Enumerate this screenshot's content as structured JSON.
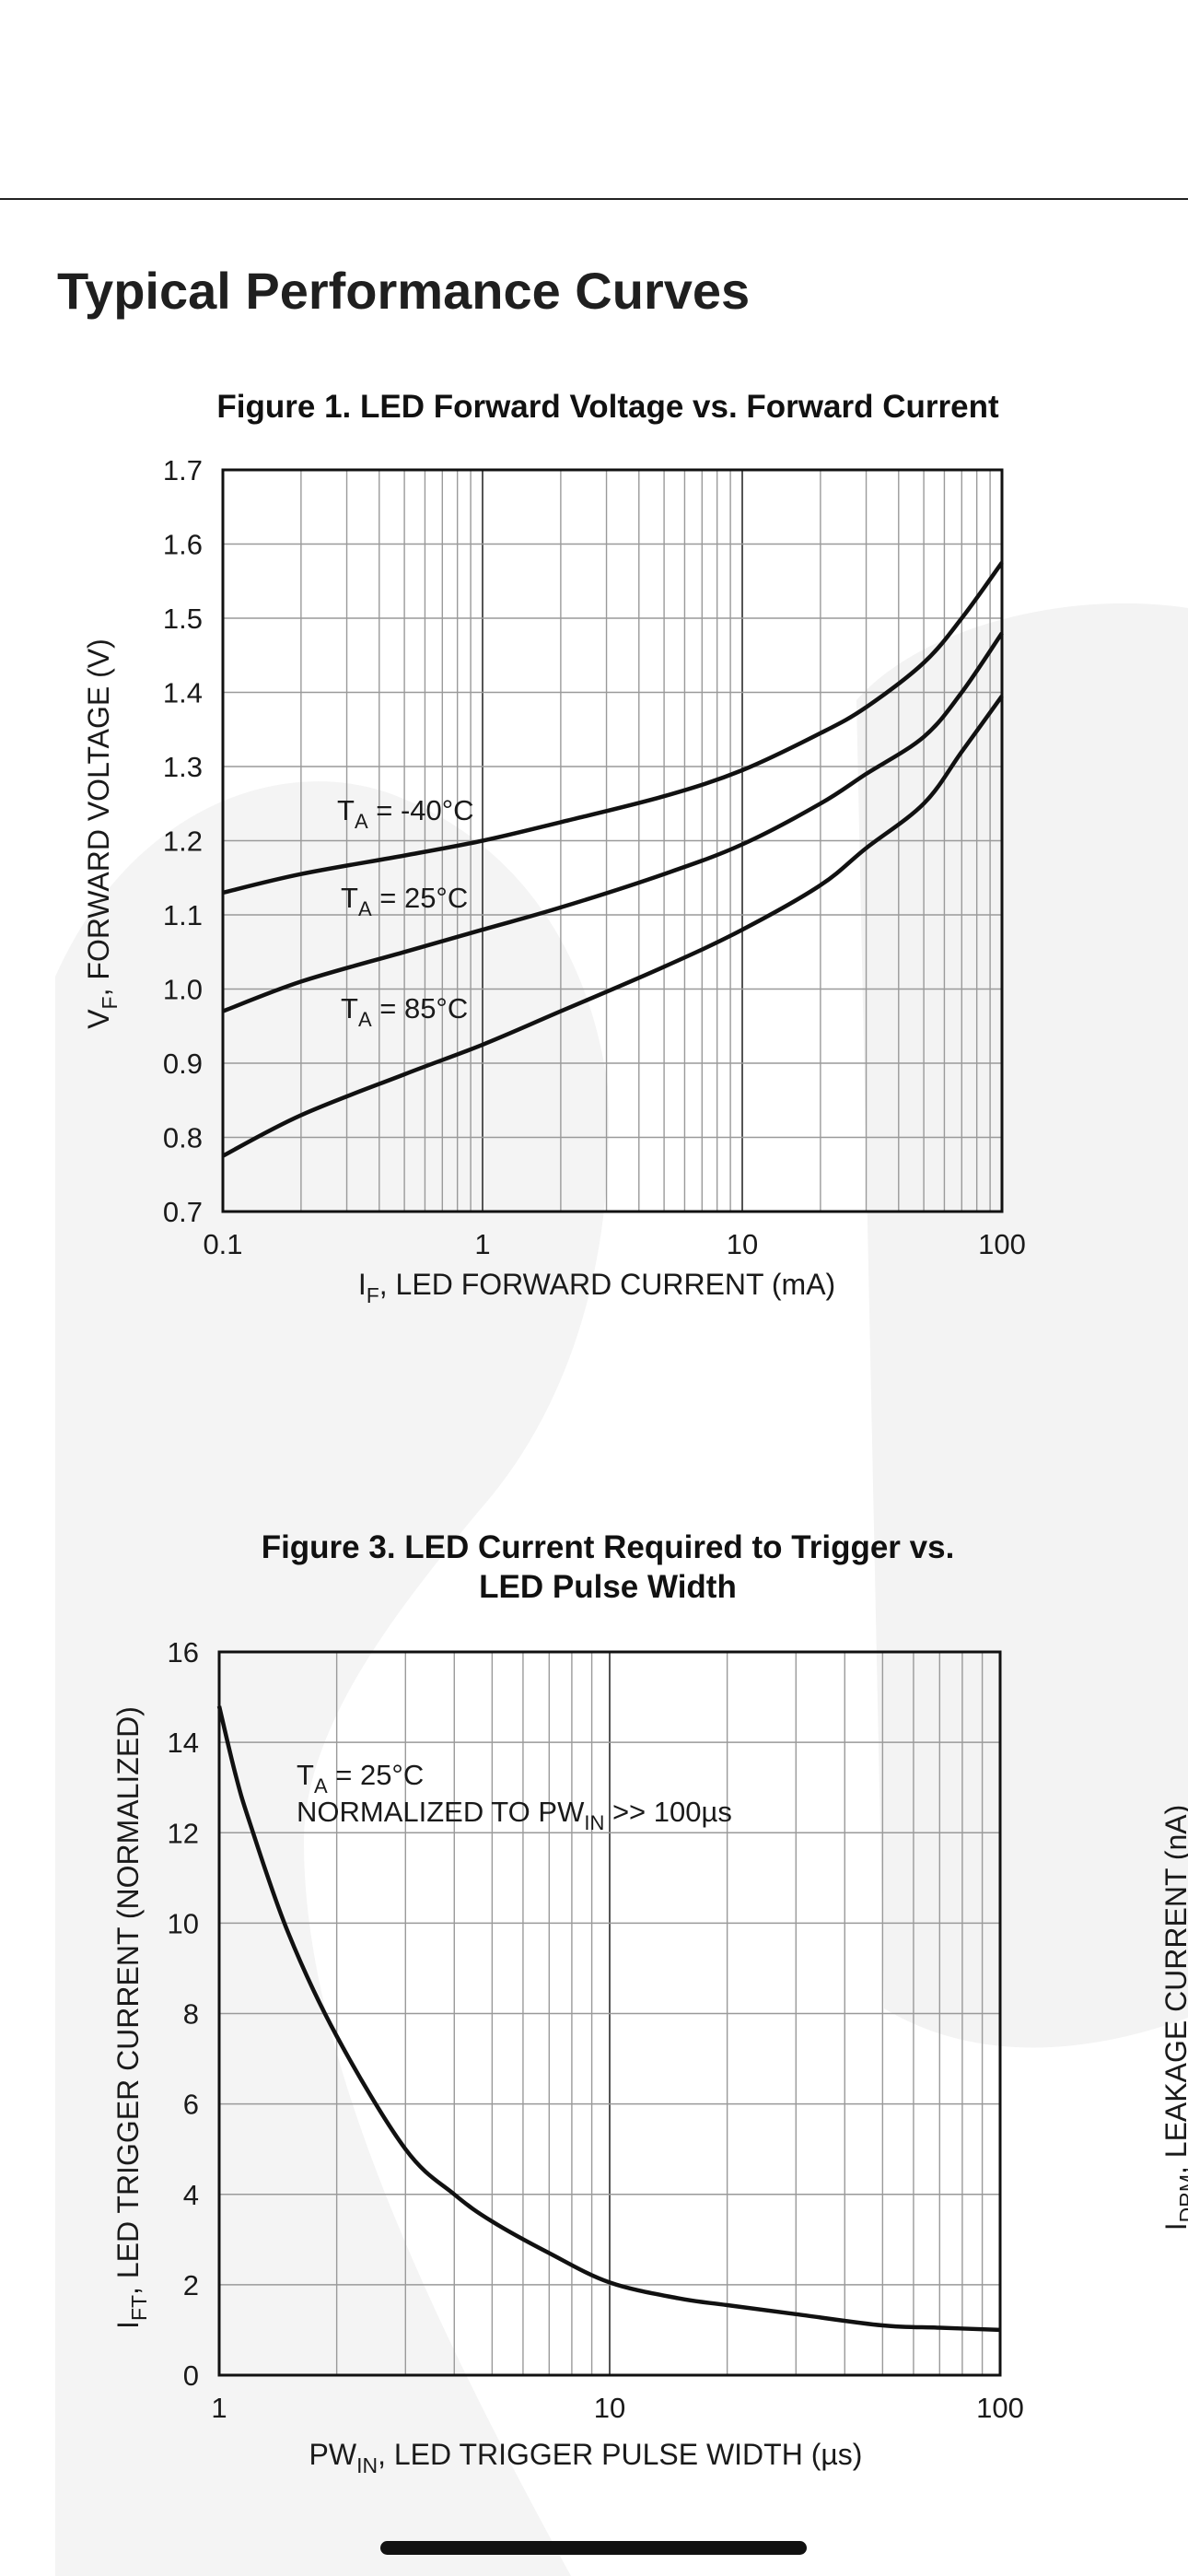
{
  "page": {
    "heading": "Typical Performance Curves"
  },
  "chart_data": [
    {
      "type": "line",
      "title": "Figure 1. LED Forward Voltage vs. Forward Current",
      "xscale": "log",
      "xlim": [
        0.1,
        100
      ],
      "ylim": [
        0.7,
        1.7
      ],
      "grid": true,
      "x_ticks": [
        "0.1",
        "1",
        "10",
        "100"
      ],
      "y_ticks": [
        "0.7",
        "0.8",
        "0.9",
        "1.0",
        "1.1",
        "1.2",
        "1.3",
        "1.4",
        "1.5",
        "1.6",
        "1.7"
      ],
      "xlabel": {
        "pre": "I",
        "sub": "F",
        "post": ", LED FORWARD CURRENT (mA)"
      },
      "ylabel": {
        "pre": "V",
        "sub": "F",
        "post": ", FORWARD VOLTAGE (V)"
      },
      "series": [
        {
          "x": [
            0.1,
            0.2,
            0.5,
            1,
            2,
            5,
            10,
            20,
            30,
            50,
            70,
            100
          ],
          "y": [
            1.13,
            1.155,
            1.18,
            1.2,
            1.225,
            1.26,
            1.295,
            1.345,
            1.38,
            1.44,
            1.5,
            1.575
          ]
        },
        {
          "x": [
            0.1,
            0.2,
            0.5,
            1,
            2,
            5,
            10,
            20,
            30,
            50,
            70,
            100
          ],
          "y": [
            0.97,
            1.01,
            1.05,
            1.08,
            1.11,
            1.155,
            1.195,
            1.25,
            1.29,
            1.34,
            1.4,
            1.48
          ]
        },
        {
          "x": [
            0.1,
            0.2,
            0.5,
            1,
            2,
            5,
            10,
            20,
            30,
            50,
            70,
            100
          ],
          "y": [
            0.775,
            0.83,
            0.885,
            0.925,
            0.97,
            1.03,
            1.08,
            1.14,
            1.19,
            1.25,
            1.32,
            1.395
          ]
        }
      ],
      "annotations": [
        {
          "pre": "T",
          "sub": "A",
          "post": " = -40°C"
        },
        {
          "pre": "T",
          "sub": "A",
          "post": " = 25°C"
        },
        {
          "pre": "T",
          "sub": "A",
          "post": " = 85°C"
        }
      ]
    },
    {
      "type": "line",
      "title": [
        "Figure 3. LED Current Required to Trigger vs.",
        "LED Pulse Width"
      ],
      "xscale": "log",
      "xlim": [
        1,
        100
      ],
      "ylim": [
        0,
        16
      ],
      "grid": true,
      "x_ticks": [
        "1",
        "10",
        "100"
      ],
      "y_ticks": [
        "0",
        "2",
        "4",
        "6",
        "8",
        "10",
        "12",
        "14",
        "16"
      ],
      "xlabel": {
        "pre": "PW",
        "sub": "IN",
        "post": ", LED TRIGGER PULSE WIDTH (µs)"
      },
      "ylabel": {
        "pre": "I",
        "sub": "FT",
        "post": ",  LED TRIGGER CURRENT (NORMALIZED)"
      },
      "series": [
        {
          "x": [
            1,
            1.1,
            1.2,
            1.5,
            2,
            3,
            4,
            5,
            7,
            10,
            15,
            20,
            30,
            50,
            70,
            100
          ],
          "y": [
            14.8,
            13.3,
            12.2,
            9.8,
            7.5,
            5.0,
            4.0,
            3.4,
            2.7,
            2.05,
            1.7,
            1.55,
            1.35,
            1.1,
            1.05,
            1.0
          ]
        }
      ],
      "annotations": [
        {
          "pre": "T",
          "sub": "A",
          "post": " = 25°C"
        },
        {
          "pre": "NORMALIZED TO PW",
          "sub": "IN",
          "post": " >> 100µs"
        }
      ]
    }
  ],
  "partial_axis_label": {
    "pre": "I",
    "sub": "DRM",
    "post": ", LEAKAGE CURRENT (nA)"
  }
}
